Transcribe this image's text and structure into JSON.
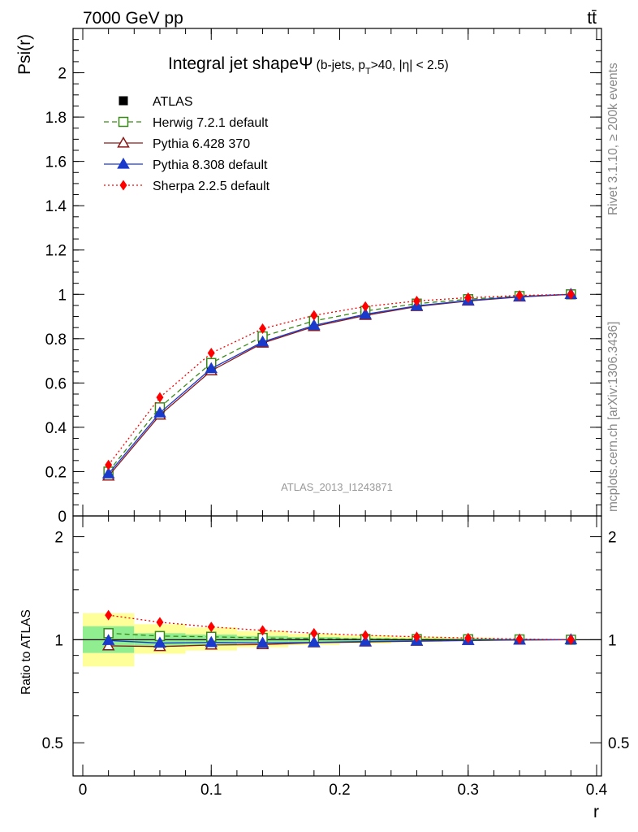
{
  "header": {
    "left": "7000 GeV pp",
    "right": "tt̄"
  },
  "side": {
    "rivet": "Rivet 3.1.10, ≥ 200k events",
    "mcplots": "mcplots.cern.ch [arXiv:1306.3436]"
  },
  "chart_data": [
    {
      "type": "line",
      "title": "Integral jet shapeΨ",
      "subtitle": "(b-jets, p_T>40, |η| < 2.5)",
      "title_parts": {
        "main": "Integral jet shapeΨ",
        "sub_a": "(b-jets, p",
        "sub_b": "T",
        "sub_c": ">40, |η| < 2.5)"
      },
      "ylabel": "Psi(r)",
      "xlabel": "",
      "watermark": "ATLAS_2013_I1243871",
      "xlim": [
        0,
        0.4
      ],
      "ylim": [
        0,
        2.2
      ],
      "x": [
        0.02,
        0.06,
        0.1,
        0.14,
        0.18,
        0.22,
        0.26,
        0.3,
        0.34,
        0.38
      ],
      "yticks": [
        {
          "v": 0,
          "label": "0"
        },
        {
          "v": 0.2,
          "label": "0.2"
        },
        {
          "v": 0.4,
          "label": "0.4"
        },
        {
          "v": 0.6,
          "label": "0.6"
        },
        {
          "v": 0.8,
          "label": "0.8"
        },
        {
          "v": 1.0,
          "label": "1"
        },
        {
          "v": 1.2,
          "label": "1.2"
        },
        {
          "v": 1.4,
          "label": "1.4"
        },
        {
          "v": 1.6,
          "label": "1.6"
        },
        {
          "v": 1.8,
          "label": "1.8"
        },
        {
          "v": 2.0,
          "label": "2"
        }
      ],
      "legend_position": "top-left",
      "series": [
        {
          "name": "ATLAS",
          "color": "#000000",
          "marker": "square-filled",
          "line": "none",
          "values": [
            0.195,
            0.475,
            0.675,
            0.795,
            0.87,
            0.92,
            0.955,
            0.975,
            0.99,
            1.0
          ]
        },
        {
          "name": "Herwig 7.2.1 default",
          "color": "#3a8a1a",
          "marker": "square-open",
          "line": "dashed",
          "values": [
            0.2,
            0.49,
            0.69,
            0.81,
            0.88,
            0.925,
            0.958,
            0.978,
            0.992,
            1.0
          ]
        },
        {
          "name": "Pythia 6.428 370",
          "color": "#8b1a1a",
          "marker": "triangle-open",
          "line": "solid",
          "values": [
            0.18,
            0.455,
            0.655,
            0.78,
            0.855,
            0.905,
            0.945,
            0.97,
            0.988,
            1.0
          ]
        },
        {
          "name": "Pythia 8.308 default",
          "color": "#1a3acc",
          "marker": "triangle-filled",
          "line": "solid",
          "values": [
            0.19,
            0.465,
            0.665,
            0.785,
            0.86,
            0.91,
            0.948,
            0.972,
            0.99,
            1.0
          ]
        },
        {
          "name": "Sherpa 2.2.5 default",
          "color": "#ff0000",
          "marker": "diamond-filled",
          "line": "dotted",
          "values": [
            0.23,
            0.535,
            0.735,
            0.845,
            0.905,
            0.945,
            0.97,
            0.985,
            0.995,
            1.0
          ]
        }
      ]
    },
    {
      "type": "line",
      "title": "",
      "ylabel": "Ratio to ATLAS",
      "xlabel": "r",
      "xlim": [
        0,
        0.4
      ],
      "ylim": [
        0.4,
        2.3
      ],
      "log_y": true,
      "x": [
        0.02,
        0.06,
        0.1,
        0.14,
        0.18,
        0.22,
        0.26,
        0.3,
        0.34,
        0.38
      ],
      "yticks": [
        {
          "v": 0.5,
          "label": "0.5"
        },
        {
          "v": 1,
          "label": "1"
        },
        {
          "v": 2,
          "label": "2"
        }
      ],
      "xticks": [
        {
          "v": 0,
          "label": "0"
        },
        {
          "v": 0.1,
          "label": "0.1"
        },
        {
          "v": 0.2,
          "label": "0.2"
        },
        {
          "v": 0.3,
          "label": "0.3"
        },
        {
          "v": 0.4,
          "label": "0.4"
        }
      ],
      "bands": {
        "yellow_color": "#ffff99",
        "green_color": "#90ee90",
        "bins": [
          {
            "x0": 0.0,
            "x1": 0.04,
            "y_lo": 0.835,
            "y_hi": 1.195,
            "g_lo": 0.915,
            "g_hi": 1.095
          },
          {
            "x0": 0.04,
            "x1": 0.08,
            "y_lo": 0.91,
            "y_hi": 1.11,
            "g_lo": 0.955,
            "g_hi": 1.045
          },
          {
            "x0": 0.08,
            "x1": 0.12,
            "y_lo": 0.93,
            "y_hi": 1.085,
            "g_lo": 0.965,
            "g_hi": 1.035
          },
          {
            "x0": 0.12,
            "x1": 0.16,
            "y_lo": 0.95,
            "y_hi": 1.06,
            "g_lo": 0.975,
            "g_hi": 1.025
          },
          {
            "x0": 0.16,
            "x1": 0.2,
            "y_lo": 0.965,
            "y_hi": 1.04,
            "g_lo": 0.982,
            "g_hi": 1.018
          },
          {
            "x0": 0.2,
            "x1": 0.24,
            "y_lo": 0.975,
            "y_hi": 1.03,
            "g_lo": 0.987,
            "g_hi": 1.013
          },
          {
            "x0": 0.24,
            "x1": 0.28,
            "y_lo": 0.983,
            "y_hi": 1.02,
            "g_lo": 0.991,
            "g_hi": 1.009
          },
          {
            "x0": 0.28,
            "x1": 0.32,
            "y_lo": 0.989,
            "y_hi": 1.013,
            "g_lo": 0.994,
            "g_hi": 1.006
          },
          {
            "x0": 0.32,
            "x1": 0.36,
            "y_lo": 0.994,
            "y_hi": 1.007,
            "g_lo": 0.997,
            "g_hi": 1.003
          },
          {
            "x0": 0.36,
            "x1": 0.4,
            "y_lo": 0.998,
            "y_hi": 1.002,
            "g_lo": 0.999,
            "g_hi": 1.001
          }
        ]
      },
      "series": [
        {
          "name": "Herwig 7.2.1 default",
          "color": "#3a8a1a",
          "marker": "square-open",
          "line": "dashed",
          "values": [
            1.045,
            1.025,
            1.02,
            1.012,
            1.008,
            1.005,
            1.004,
            1.003,
            1.002,
            1.0
          ]
        },
        {
          "name": "Pythia 6.428 370",
          "color": "#8b1a1a",
          "marker": "triangle-open",
          "line": "solid",
          "values": [
            0.96,
            0.955,
            0.965,
            0.968,
            0.98,
            0.985,
            0.99,
            0.995,
            0.998,
            1.0
          ]
        },
        {
          "name": "Pythia 8.308 default",
          "color": "#1a3acc",
          "marker": "triangle-filled",
          "line": "solid",
          "values": [
            0.995,
            0.978,
            0.982,
            0.978,
            0.982,
            0.988,
            0.992,
            0.996,
            0.999,
            1.0
          ]
        },
        {
          "name": "Sherpa 2.2.5 default",
          "color": "#ff0000",
          "marker": "diamond-filled",
          "line": "dotted",
          "values": [
            1.18,
            1.125,
            1.09,
            1.065,
            1.045,
            1.03,
            1.02,
            1.012,
            1.005,
            1.0
          ]
        }
      ]
    }
  ]
}
